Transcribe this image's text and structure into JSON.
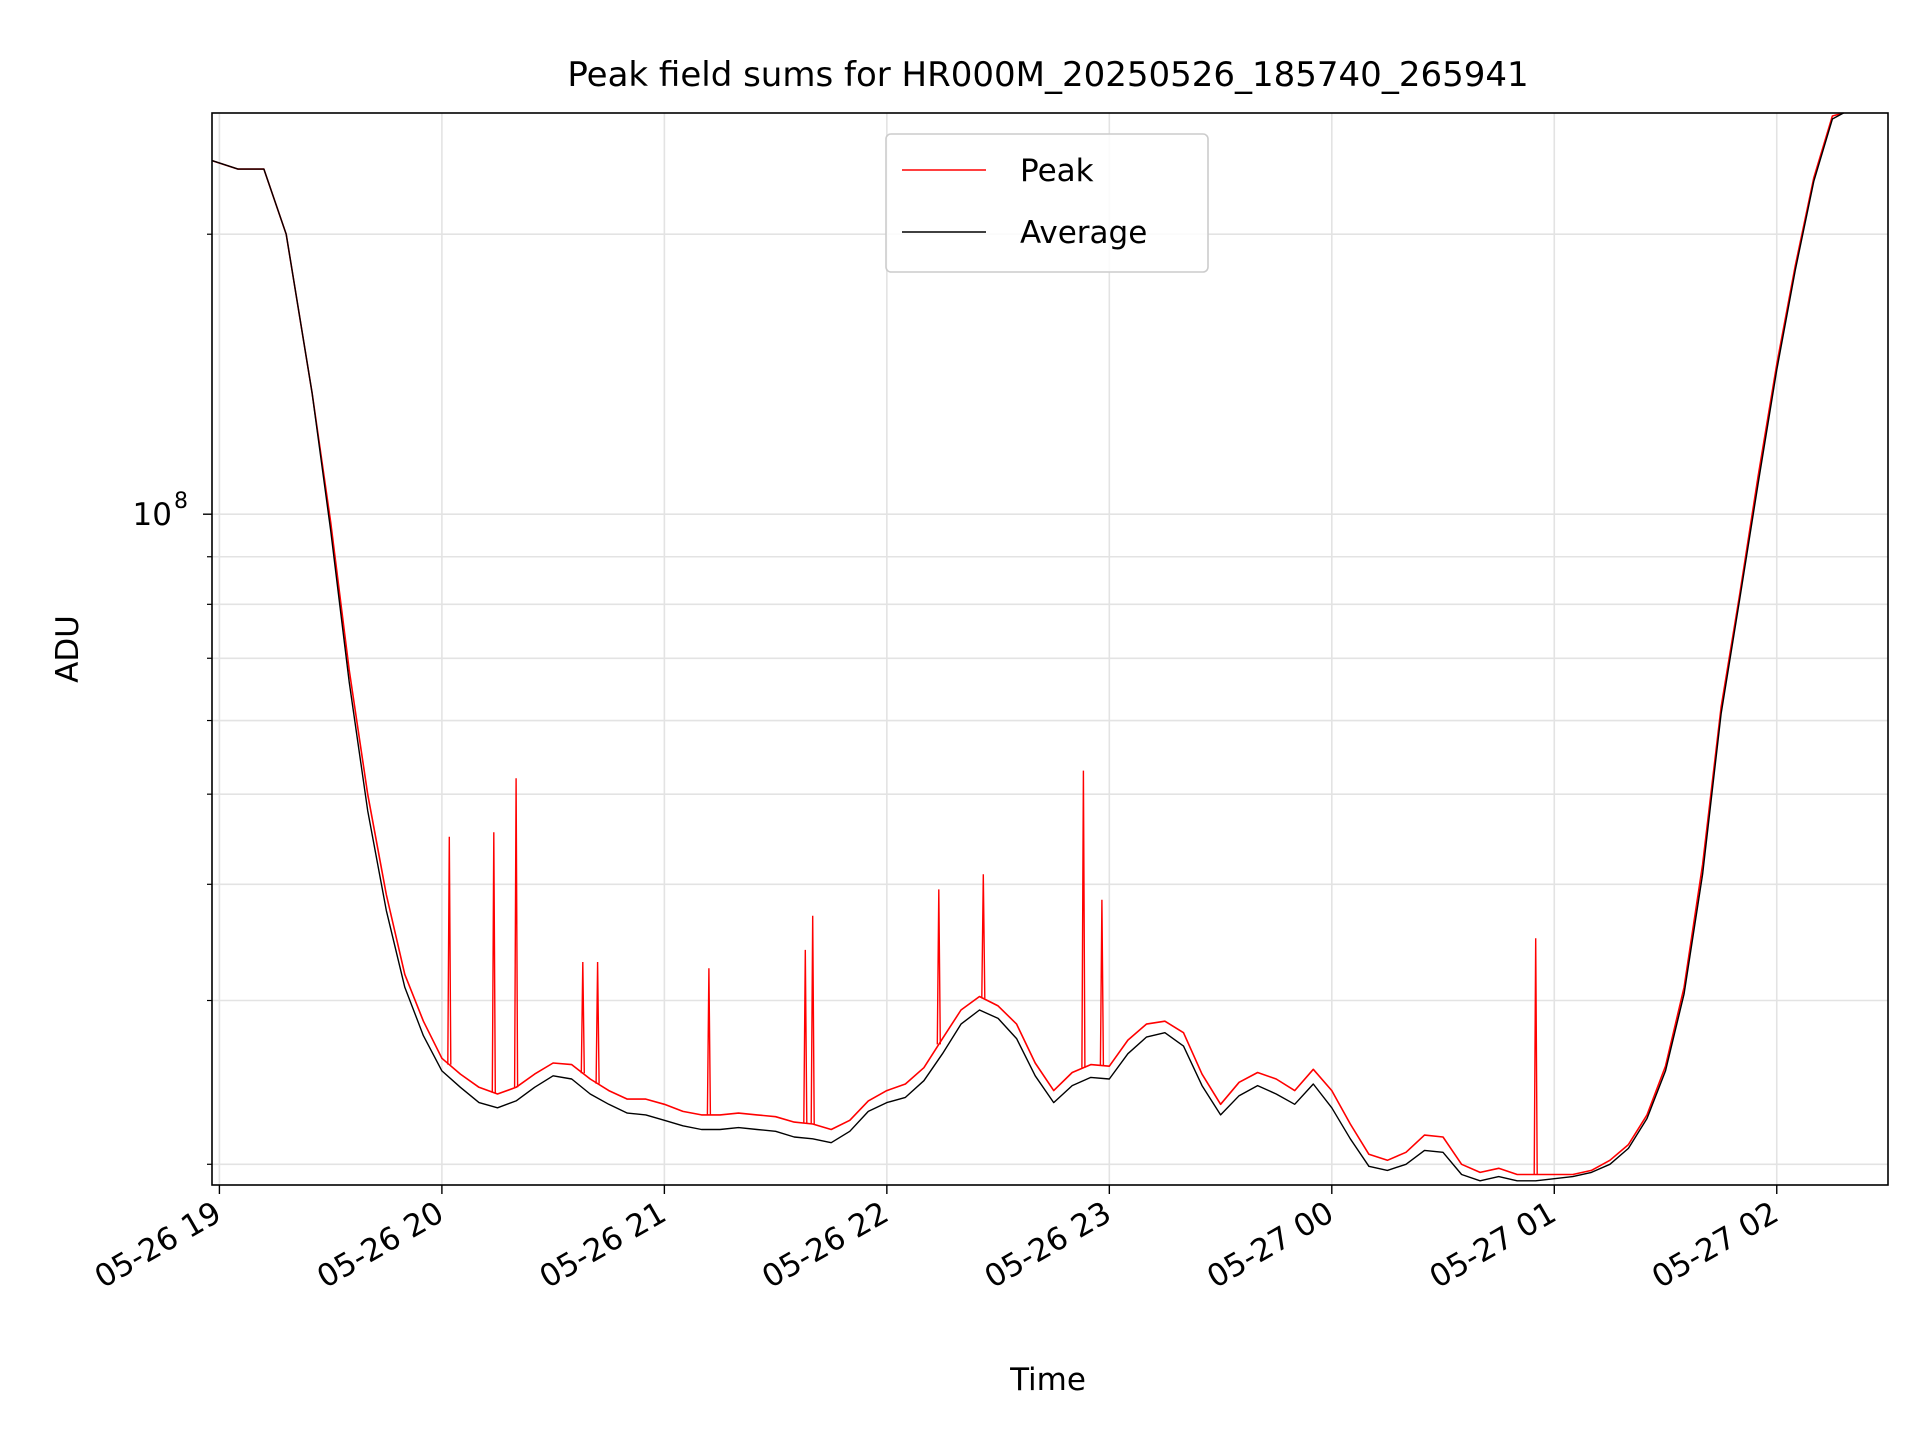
{
  "chart_data": {
    "type": "line",
    "title": "Peak field sums for HR000M_20250526_185740_265941",
    "xlabel": "Time",
    "ylabel": "ADU",
    "y_scale": "log",
    "y_tick_major": {
      "value": 100000000,
      "base": "10",
      "exp": "8"
    },
    "y_minor_ticks": [
      20000000,
      30000000,
      40000000,
      50000000,
      60000000,
      70000000,
      80000000,
      90000000,
      200000000
    ],
    "ylim": [
      19000000,
      270000000
    ],
    "xlim": [
      "2025-05-26 18:58:00",
      "2025-05-27 02:30:00"
    ],
    "x_ticks": [
      {
        "time": "2025-05-26 19:00",
        "label": "05-26 19"
      },
      {
        "time": "2025-05-26 20:00",
        "label": "05-26 20"
      },
      {
        "time": "2025-05-26 21:00",
        "label": "05-26 21"
      },
      {
        "time": "2025-05-26 22:00",
        "label": "05-26 22"
      },
      {
        "time": "2025-05-26 23:00",
        "label": "05-26 23"
      },
      {
        "time": "2025-05-27 00:00",
        "label": "05-27 00"
      },
      {
        "time": "2025-05-27 01:00",
        "label": "05-27 01"
      },
      {
        "time": "2025-05-27 02:00",
        "label": "05-27 02"
      }
    ],
    "grid": true,
    "legend_position": "top-center",
    "series": [
      {
        "name": "Peak",
        "color": "#ff0000",
        "x": [
          "2025-05-26 18:58",
          "2025-05-26 19:05",
          "2025-05-26 19:12",
          "2025-05-26 19:18",
          "2025-05-26 19:25",
          "2025-05-26 19:30",
          "2025-05-26 19:35",
          "2025-05-26 19:40",
          "2025-05-26 19:45",
          "2025-05-26 19:50",
          "2025-05-26 19:55",
          "2025-05-26 20:00",
          "2025-05-26 20:05",
          "2025-05-26 20:10",
          "2025-05-26 20:15",
          "2025-05-26 20:20",
          "2025-05-26 20:25",
          "2025-05-26 20:30",
          "2025-05-26 20:35",
          "2025-05-26 20:40",
          "2025-05-26 20:45",
          "2025-05-26 20:50",
          "2025-05-26 20:55",
          "2025-05-26 21:00",
          "2025-05-26 21:05",
          "2025-05-26 21:10",
          "2025-05-26 21:15",
          "2025-05-26 21:20",
          "2025-05-26 21:25",
          "2025-05-26 21:30",
          "2025-05-26 21:35",
          "2025-05-26 21:40",
          "2025-05-26 21:45",
          "2025-05-26 21:50",
          "2025-05-26 21:55",
          "2025-05-26 22:00",
          "2025-05-26 22:05",
          "2025-05-26 22:10",
          "2025-05-26 22:15",
          "2025-05-26 22:20",
          "2025-05-26 22:25",
          "2025-05-26 22:30",
          "2025-05-26 22:35",
          "2025-05-26 22:40",
          "2025-05-26 22:45",
          "2025-05-26 22:50",
          "2025-05-26 22:55",
          "2025-05-26 23:00",
          "2025-05-26 23:05",
          "2025-05-26 23:10",
          "2025-05-26 23:15",
          "2025-05-26 23:20",
          "2025-05-26 23:25",
          "2025-05-26 23:30",
          "2025-05-26 23:35",
          "2025-05-26 23:40",
          "2025-05-26 23:45",
          "2025-05-26 23:50",
          "2025-05-26 23:55",
          "2025-05-27 00:00",
          "2025-05-27 00:05",
          "2025-05-27 00:10",
          "2025-05-27 00:15",
          "2025-05-27 00:20",
          "2025-05-27 00:25",
          "2025-05-27 00:30",
          "2025-05-27 00:35",
          "2025-05-27 00:40",
          "2025-05-27 00:45",
          "2025-05-27 00:50",
          "2025-05-27 00:55",
          "2025-05-27 01:00",
          "2025-05-27 01:05",
          "2025-05-27 01:10",
          "2025-05-27 01:15",
          "2025-05-27 01:20",
          "2025-05-27 01:25",
          "2025-05-27 01:30",
          "2025-05-27 01:35",
          "2025-05-27 01:40",
          "2025-05-27 01:45",
          "2025-05-27 01:50",
          "2025-05-27 01:55",
          "2025-05-27 02:00",
          "2025-05-27 02:05",
          "2025-05-27 02:10",
          "2025-05-27 02:15",
          "2025-05-27 02:18"
        ],
        "y": [
          240000000,
          235000000,
          235000000,
          200000000,
          135000000,
          98000000,
          68000000,
          50000000,
          39000000,
          32000000,
          28500000,
          26000000,
          25000000,
          24200000,
          23800000,
          24200000,
          25000000,
          25700000,
          25600000,
          24700000,
          24000000,
          23500000,
          23500000,
          23200000,
          22800000,
          22600000,
          22600000,
          22700000,
          22600000,
          22500000,
          22200000,
          22100000,
          21800000,
          22300000,
          23400000,
          24000000,
          24400000,
          25400000,
          27300000,
          29300000,
          30300000,
          29600000,
          28300000,
          25700000,
          24000000,
          25100000,
          25600000,
          25500000,
          27200000,
          28300000,
          28500000,
          27700000,
          25000000,
          23200000,
          24500000,
          25100000,
          24700000,
          24000000,
          25300000,
          24000000,
          22100000,
          20500000,
          20200000,
          20600000,
          21500000,
          21400000,
          20000000,
          19600000,
          19800000,
          19500000,
          19500000,
          19500000,
          19500000,
          19700000,
          20200000,
          21000000,
          22600000,
          25500000,
          31000000,
          42000000,
          62000000,
          82000000,
          110000000,
          145000000,
          185000000,
          230000000,
          268000000,
          272000000
        ]
      },
      {
        "name": "Average",
        "color": "#000000",
        "x": [
          "2025-05-26 18:58",
          "2025-05-26 19:05",
          "2025-05-26 19:12",
          "2025-05-26 19:18",
          "2025-05-26 19:25",
          "2025-05-26 19:30",
          "2025-05-26 19:35",
          "2025-05-26 19:40",
          "2025-05-26 19:45",
          "2025-05-26 19:50",
          "2025-05-26 19:55",
          "2025-05-26 20:00",
          "2025-05-26 20:05",
          "2025-05-26 20:10",
          "2025-05-26 20:15",
          "2025-05-26 20:20",
          "2025-05-26 20:25",
          "2025-05-26 20:30",
          "2025-05-26 20:35",
          "2025-05-26 20:40",
          "2025-05-26 20:45",
          "2025-05-26 20:50",
          "2025-05-26 20:55",
          "2025-05-26 21:00",
          "2025-05-26 21:05",
          "2025-05-26 21:10",
          "2025-05-26 21:15",
          "2025-05-26 21:20",
          "2025-05-26 21:25",
          "2025-05-26 21:30",
          "2025-05-26 21:35",
          "2025-05-26 21:40",
          "2025-05-26 21:45",
          "2025-05-26 21:50",
          "2025-05-26 21:55",
          "2025-05-26 22:00",
          "2025-05-26 22:05",
          "2025-05-26 22:10",
          "2025-05-26 22:15",
          "2025-05-26 22:20",
          "2025-05-26 22:25",
          "2025-05-26 22:30",
          "2025-05-26 22:35",
          "2025-05-26 22:40",
          "2025-05-26 22:45",
          "2025-05-26 22:50",
          "2025-05-26 22:55",
          "2025-05-26 23:00",
          "2025-05-26 23:05",
          "2025-05-26 23:10",
          "2025-05-26 23:15",
          "2025-05-26 23:20",
          "2025-05-26 23:25",
          "2025-05-26 23:30",
          "2025-05-26 23:35",
          "2025-05-26 23:40",
          "2025-05-26 23:45",
          "2025-05-26 23:50",
          "2025-05-26 23:55",
          "2025-05-27 00:00",
          "2025-05-27 00:05",
          "2025-05-27 00:10",
          "2025-05-27 00:15",
          "2025-05-27 00:20",
          "2025-05-27 00:25",
          "2025-05-27 00:30",
          "2025-05-27 00:35",
          "2025-05-27 00:40",
          "2025-05-27 00:45",
          "2025-05-27 00:50",
          "2025-05-27 00:55",
          "2025-05-27 01:00",
          "2025-05-27 01:05",
          "2025-05-27 01:10",
          "2025-05-27 01:15",
          "2025-05-27 01:20",
          "2025-05-27 01:25",
          "2025-05-27 01:30",
          "2025-05-27 01:35",
          "2025-05-27 01:40",
          "2025-05-27 01:45",
          "2025-05-27 01:50",
          "2025-05-27 01:55",
          "2025-05-27 02:00",
          "2025-05-27 02:05",
          "2025-05-27 02:10",
          "2025-05-27 02:15",
          "2025-05-27 02:18"
        ],
        "y": [
          240000000,
          235000000,
          235000000,
          200000000,
          135000000,
          96000000,
          66000000,
          48000000,
          37500000,
          31000000,
          27500000,
          25200000,
          24200000,
          23300000,
          23000000,
          23400000,
          24200000,
          24900000,
          24700000,
          23800000,
          23200000,
          22700000,
          22600000,
          22300000,
          22000000,
          21800000,
          21800000,
          21900000,
          21800000,
          21700000,
          21400000,
          21300000,
          21100000,
          21700000,
          22800000,
          23300000,
          23600000,
          24600000,
          26300000,
          28300000,
          29300000,
          28700000,
          27300000,
          24900000,
          23300000,
          24300000,
          24800000,
          24700000,
          26300000,
          27400000,
          27700000,
          26800000,
          24300000,
          22600000,
          23700000,
          24300000,
          23800000,
          23200000,
          24400000,
          23000000,
          21300000,
          19900000,
          19700000,
          20000000,
          20700000,
          20600000,
          19500000,
          19200000,
          19400000,
          19200000,
          19200000,
          19300000,
          19400000,
          19600000,
          20000000,
          20800000,
          22400000,
          25200000,
          30500000,
          41000000,
          61000000,
          81000000,
          108000000,
          143000000,
          183000000,
          228000000,
          266000000,
          270000000
        ]
      }
    ],
    "spikes": [
      {
        "series": "Peak",
        "time": "2025-05-26 20:02",
        "value": 45000000
      },
      {
        "series": "Peak",
        "time": "2025-05-26 20:14",
        "value": 45500000
      },
      {
        "series": "Peak",
        "time": "2025-05-26 20:20",
        "value": 52000000
      },
      {
        "series": "Peak",
        "time": "2025-05-26 20:38",
        "value": 33000000
      },
      {
        "series": "Peak",
        "time": "2025-05-26 20:42",
        "value": 33000000
      },
      {
        "series": "Peak",
        "time": "2025-05-26 21:12",
        "value": 32500000
      },
      {
        "series": "Peak",
        "time": "2025-05-26 21:38",
        "value": 34000000
      },
      {
        "series": "Peak",
        "time": "2025-05-26 21:40",
        "value": 37000000
      },
      {
        "series": "Peak",
        "time": "2025-05-26 22:14",
        "value": 39500000
      },
      {
        "series": "Peak",
        "time": "2025-05-26 22:26",
        "value": 41000000
      },
      {
        "series": "Peak",
        "time": "2025-05-26 22:53",
        "value": 53000000
      },
      {
        "series": "Peak",
        "time": "2025-05-26 22:58",
        "value": 38500000
      },
      {
        "series": "Peak",
        "time": "2025-05-27 00:55",
        "value": 35000000
      }
    ]
  }
}
